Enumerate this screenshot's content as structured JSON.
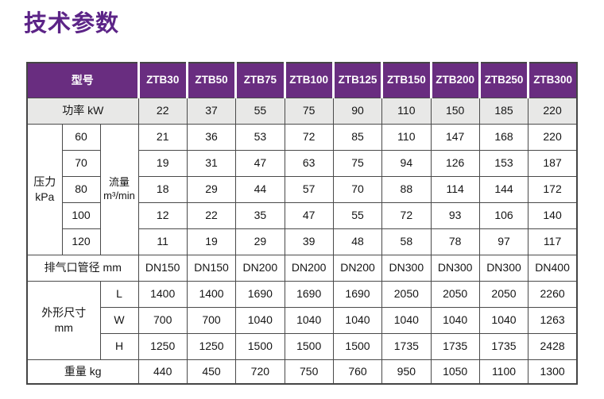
{
  "page": {
    "title": "技术参数",
    "title_color": "#5c2487",
    "header_bg": "#692d80",
    "gray_row_bg": "#e8e8e7"
  },
  "table": {
    "model_header": "型号",
    "models": [
      "ZTB30",
      "ZTB50",
      "ZTB75",
      "ZTB100",
      "ZTB125",
      "ZTB150",
      "ZTB200",
      "ZTB250",
      "ZTB300"
    ],
    "power": {
      "label": "功率 kW",
      "values": [
        22,
        37,
        55,
        75,
        90,
        110,
        150,
        185,
        220
      ]
    },
    "pressure_flow": {
      "pressure_label": "压力\nkPa",
      "flow_label": "流量\nm³/min",
      "rows": [
        {
          "pressure": 60,
          "flows": [
            21,
            36,
            53,
            72,
            85,
            110,
            147,
            168,
            220
          ]
        },
        {
          "pressure": 70,
          "flows": [
            19,
            31,
            47,
            63,
            75,
            94,
            126,
            153,
            187
          ]
        },
        {
          "pressure": 80,
          "flows": [
            18,
            29,
            44,
            57,
            70,
            88,
            114,
            144,
            172
          ]
        },
        {
          "pressure": 100,
          "flows": [
            12,
            22,
            35,
            47,
            55,
            72,
            93,
            106,
            140
          ]
        },
        {
          "pressure": 120,
          "flows": [
            11,
            19,
            29,
            39,
            48,
            58,
            78,
            97,
            117
          ]
        }
      ]
    },
    "outlet": {
      "label": "排气口管径 mm",
      "values": [
        "DN150",
        "DN150",
        "DN200",
        "DN200",
        "DN200",
        "DN300",
        "DN300",
        "DN300",
        "DN400"
      ]
    },
    "dimensions": {
      "label": "外形尺寸\nmm",
      "rows": [
        {
          "dim": "L",
          "values": [
            1400,
            1400,
            1690,
            1690,
            1690,
            2050,
            2050,
            2050,
            2260
          ]
        },
        {
          "dim": "W",
          "values": [
            700,
            700,
            1040,
            1040,
            1040,
            1040,
            1040,
            1040,
            1263
          ]
        },
        {
          "dim": "H",
          "values": [
            1250,
            1250,
            1500,
            1500,
            1500,
            1735,
            1735,
            1735,
            2428
          ]
        }
      ]
    },
    "weight": {
      "label": "重量 kg",
      "values": [
        440,
        450,
        720,
        750,
        760,
        950,
        1050,
        1100,
        1300
      ]
    }
  }
}
